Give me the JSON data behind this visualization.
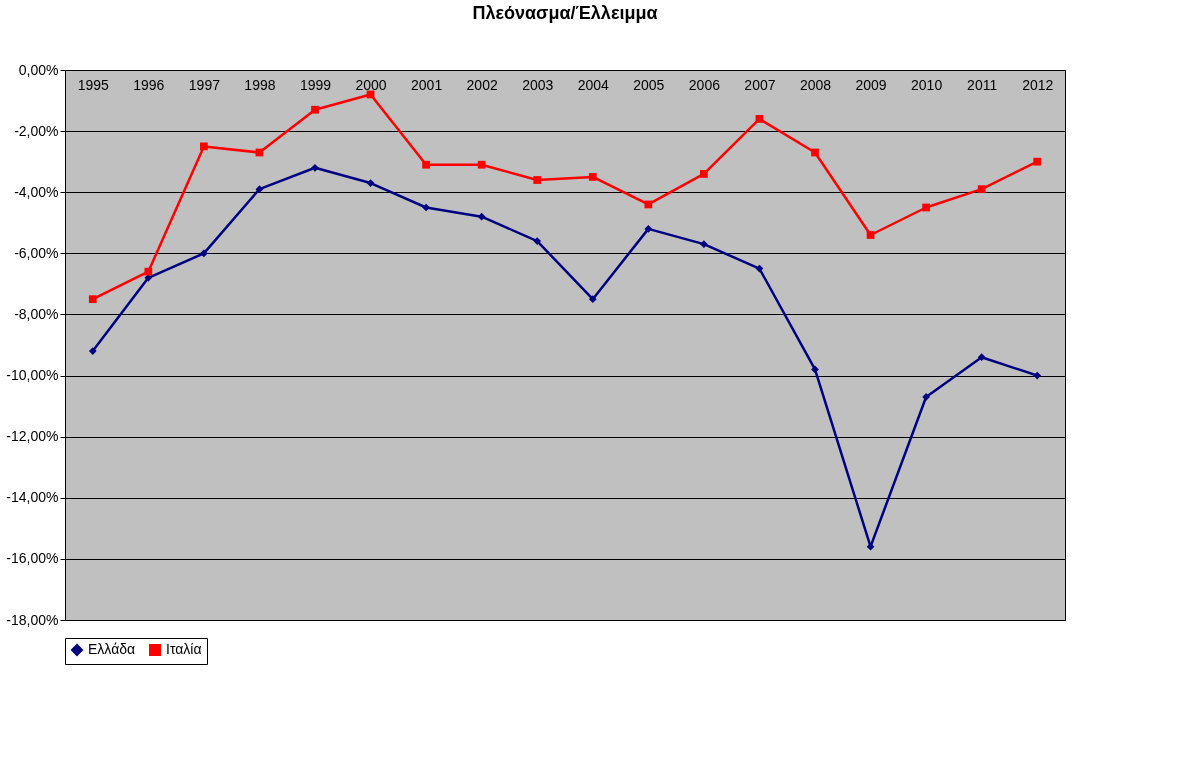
{
  "chart_data": {
    "type": "line",
    "title": "Πλεόνασμα/Έλλειμμα",
    "categories": [
      "1995",
      "1996",
      "1997",
      "1998",
      "1999",
      "2000",
      "2001",
      "2002",
      "2003",
      "2004",
      "2005",
      "2006",
      "2007",
      "2008",
      "2009",
      "2010",
      "2011",
      "2012"
    ],
    "series": [
      {
        "name": "Ελλάδα",
        "color": "#000080",
        "marker": "diamond",
        "values": [
          -9.2,
          -6.8,
          -6.0,
          -3.9,
          -3.2,
          -3.7,
          -4.5,
          -4.8,
          -5.6,
          -7.5,
          -5.2,
          -5.7,
          -6.5,
          -9.8,
          -15.6,
          -10.7,
          -9.4,
          -10.0
        ]
      },
      {
        "name": "Ιταλία",
        "color": "#ff0000",
        "marker": "square",
        "values": [
          -7.5,
          -6.6,
          -2.5,
          -2.7,
          -1.3,
          -0.8,
          -3.1,
          -3.1,
          -3.6,
          -3.5,
          -4.4,
          -3.4,
          -1.6,
          -2.7,
          -5.4,
          -4.5,
          -3.9,
          -3.0
        ]
      }
    ],
    "ylim": [
      -18,
      0
    ],
    "yticks": [
      {
        "value": 0,
        "label": "0,00%"
      },
      {
        "value": -2,
        "label": "-2,00%"
      },
      {
        "value": -4,
        "label": "-4,00%"
      },
      {
        "value": -6,
        "label": "-6,00%"
      },
      {
        "value": -8,
        "label": "-8,00%"
      },
      {
        "value": -10,
        "label": "-10,00%"
      },
      {
        "value": -12,
        "label": "-12,00%"
      },
      {
        "value": -14,
        "label": "-14,00%"
      },
      {
        "value": -16,
        "label": "-16,00%"
      },
      {
        "value": -18,
        "label": "-18,00%"
      }
    ],
    "grid": "y",
    "legend": "bottom",
    "line_style": "solid"
  }
}
